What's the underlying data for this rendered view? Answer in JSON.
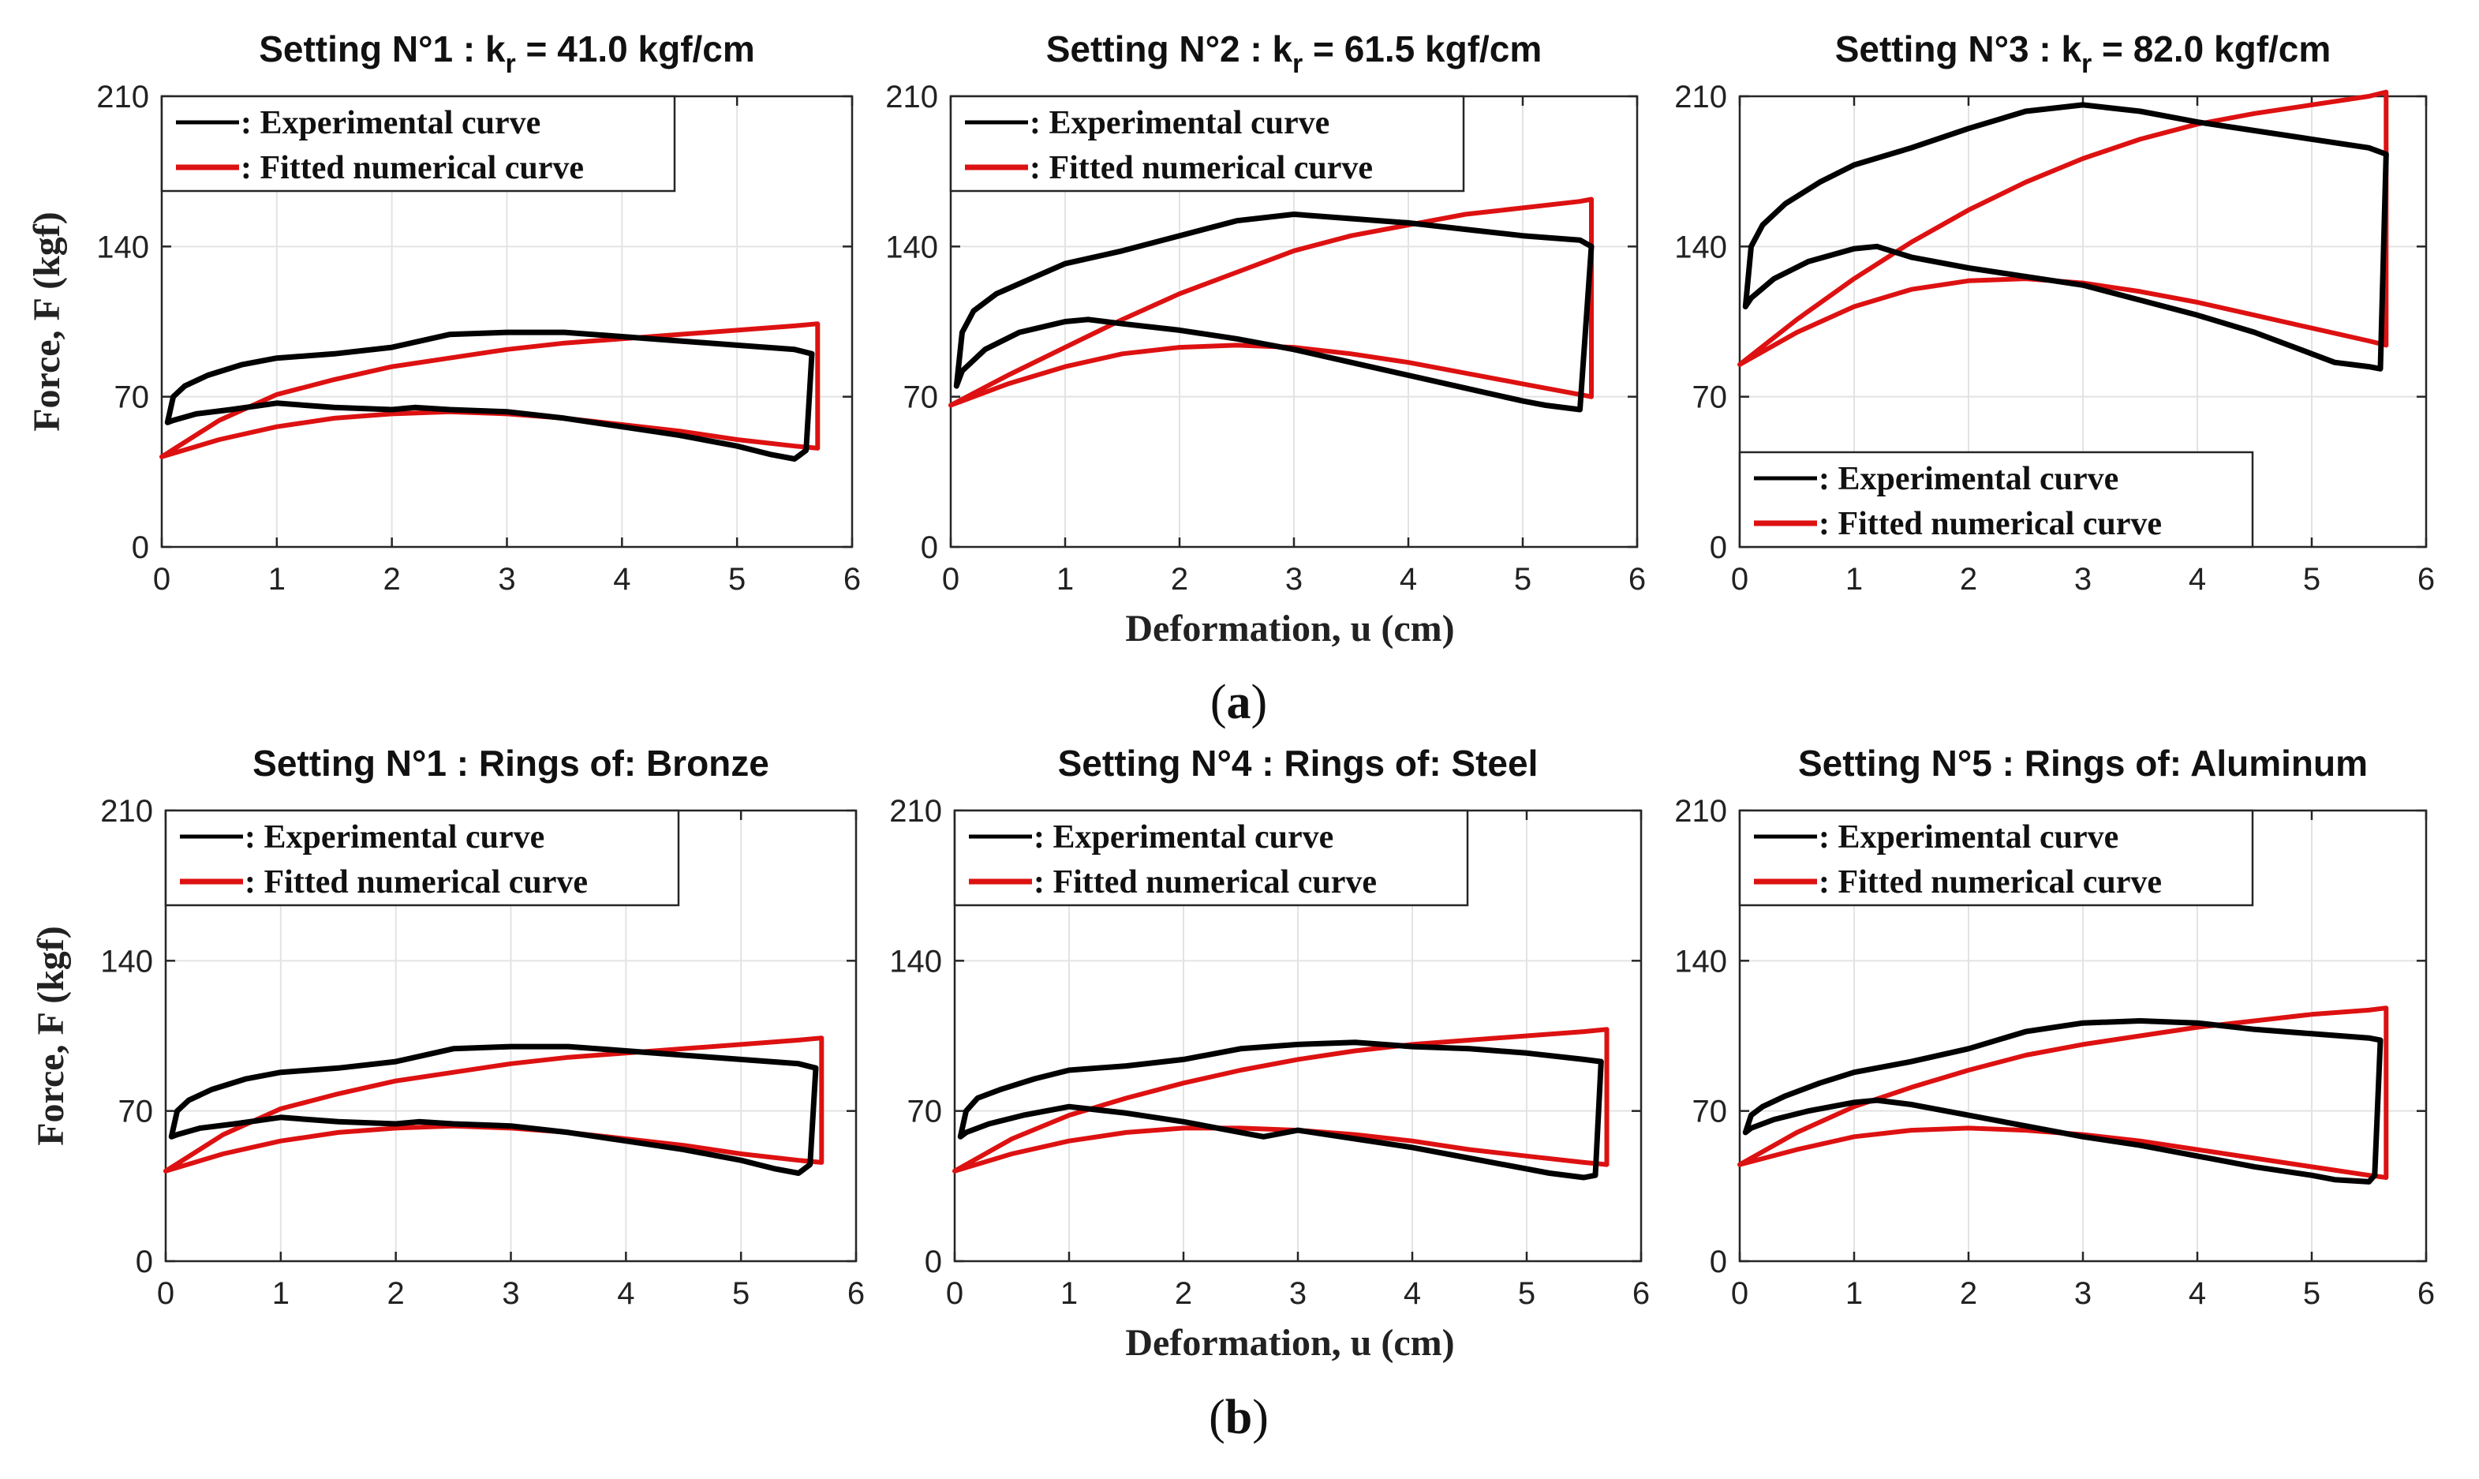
{
  "figure": {
    "row_labels": [
      {
        "open": "(",
        "letter": "a",
        "close": ")"
      },
      {
        "open": "(",
        "letter": "b",
        "close": ")"
      }
    ],
    "xlabel": "Deformation, u (cm)",
    "ylabel": "Force, F (kgf)"
  },
  "colors": {
    "experimental": "#000000",
    "fitted": "#dd1111"
  },
  "chart_data": [
    {
      "type": "line",
      "title_parts": {
        "pre": "Setting N°1 : k",
        "sub": "r",
        "post": " = 41.0 kgf/cm"
      },
      "xlabel": "",
      "ylabel": "Force, F (kgf)",
      "xlim": [
        0,
        6
      ],
      "ylim": [
        0,
        210
      ],
      "xticks": [
        0,
        1,
        2,
        3,
        4,
        5,
        6
      ],
      "yticks": [
        0,
        70,
        140,
        210
      ],
      "grid": true,
      "legend_position": "top-left",
      "series": [
        {
          "name": ": Experimental curve",
          "kind": "experimental",
          "x": [
            0.05,
            0.1,
            0.2,
            0.4,
            0.7,
            1.0,
            1.5,
            2.0,
            2.5,
            3.0,
            3.5,
            4.0,
            4.5,
            5.0,
            5.5,
            5.65,
            5.6,
            5.5,
            5.3,
            5.0,
            4.5,
            4.0,
            3.5,
            3.0,
            2.5,
            2.2,
            2.0,
            1.5,
            1.0,
            0.6,
            0.3,
            0.1,
            0.05
          ],
          "y": [
            58,
            70,
            75,
            80,
            85,
            88,
            90,
            93,
            99,
            100,
            100,
            98,
            96,
            94,
            92,
            90,
            45,
            41,
            43,
            47,
            52,
            56,
            60,
            63,
            64,
            65,
            64,
            65,
            67,
            64,
            62,
            59,
            58
          ]
        },
        {
          "name": ": Fitted numerical curve",
          "kind": "fitted",
          "x": [
            0,
            0.5,
            1.0,
            1.5,
            2.0,
            2.5,
            3.0,
            3.5,
            4.0,
            4.5,
            5.0,
            5.5,
            5.7,
            5.7,
            5.5,
            5.0,
            4.5,
            4.0,
            3.5,
            3.0,
            2.5,
            2.0,
            1.5,
            1.0,
            0.5,
            0
          ],
          "y": [
            42,
            50,
            56,
            60,
            62,
            63,
            62,
            60,
            57,
            54,
            50,
            47,
            46,
            104,
            103,
            101,
            99,
            97,
            95,
            92,
            88,
            84,
            78,
            71,
            59,
            42
          ]
        }
      ]
    },
    {
      "type": "line",
      "title_parts": {
        "pre": "Setting N°2 : k",
        "sub": "r",
        "post": " = 61.5 kgf/cm"
      },
      "xlabel": "",
      "ylabel": "",
      "xlim": [
        0,
        6
      ],
      "ylim": [
        0,
        210
      ],
      "xticks": [
        0,
        1,
        2,
        3,
        4,
        5,
        6
      ],
      "yticks": [
        0,
        70,
        140,
        210
      ],
      "grid": true,
      "legend_position": "top-left",
      "series": [
        {
          "name": ": Experimental curve",
          "kind": "experimental",
          "x": [
            0.05,
            0.1,
            0.2,
            0.4,
            0.7,
            1.0,
            1.5,
            2.0,
            2.5,
            3.0,
            3.5,
            4.0,
            4.5,
            5.0,
            5.5,
            5.6,
            5.5,
            5.2,
            5.0,
            4.5,
            4.0,
            3.5,
            3.0,
            2.5,
            2.0,
            1.5,
            1.2,
            1.0,
            0.6,
            0.3,
            0.1,
            0.05
          ],
          "y": [
            75,
            100,
            110,
            118,
            125,
            132,
            138,
            145,
            152,
            155,
            153,
            151,
            148,
            145,
            143,
            140,
            64,
            66,
            68,
            74,
            80,
            86,
            92,
            97,
            101,
            104,
            106,
            105,
            100,
            92,
            82,
            75
          ]
        },
        {
          "name": ": Fitted numerical curve",
          "kind": "fitted",
          "x": [
            0,
            0.5,
            1.0,
            1.5,
            2.0,
            2.5,
            3.0,
            3.5,
            4.0,
            4.5,
            5.0,
            5.5,
            5.6,
            5.6,
            5.5,
            5.0,
            4.5,
            4.0,
            3.5,
            3.0,
            2.5,
            2.0,
            1.5,
            1.0,
            0.5,
            0
          ],
          "y": [
            66,
            76,
            84,
            90,
            93,
            94,
            93,
            90,
            86,
            81,
            76,
            71,
            70,
            162,
            161,
            158,
            155,
            150,
            145,
            138,
            128,
            118,
            106,
            93,
            80,
            66
          ]
        }
      ]
    },
    {
      "type": "line",
      "title_parts": {
        "pre": "Setting N°3 : k",
        "sub": "r",
        "post": " = 82.0 kgf/cm"
      },
      "xlabel": "",
      "ylabel": "",
      "xlim": [
        0,
        6
      ],
      "ylim": [
        0,
        210
      ],
      "xticks": [
        0,
        1,
        2,
        3,
        4,
        5,
        6
      ],
      "yticks": [
        0,
        70,
        140,
        210
      ],
      "grid": true,
      "legend_position": "bottom-left",
      "series": [
        {
          "name": ": Experimental curve",
          "kind": "experimental",
          "x": [
            0.05,
            0.1,
            0.2,
            0.4,
            0.7,
            1.0,
            1.5,
            2.0,
            2.5,
            3.0,
            3.5,
            4.0,
            4.5,
            5.0,
            5.5,
            5.65,
            5.6,
            5.5,
            5.2,
            5.0,
            4.5,
            4.0,
            3.5,
            3.0,
            2.5,
            2.0,
            1.5,
            1.2,
            1.0,
            0.6,
            0.3,
            0.1,
            0.05
          ],
          "y": [
            112,
            140,
            150,
            160,
            170,
            178,
            186,
            195,
            203,
            206,
            203,
            198,
            194,
            190,
            186,
            183,
            83,
            84,
            86,
            90,
            100,
            108,
            115,
            122,
            126,
            130,
            135,
            140,
            139,
            133,
            125,
            116,
            112
          ]
        },
        {
          "name": ": Fitted numerical curve",
          "kind": "fitted",
          "x": [
            0,
            0.5,
            1.0,
            1.5,
            2.0,
            2.5,
            3.0,
            3.5,
            4.0,
            4.5,
            5.0,
            5.5,
            5.65,
            5.65,
            5.5,
            5.0,
            4.5,
            4.0,
            3.5,
            3.0,
            2.5,
            2.0,
            1.5,
            1.0,
            0.5,
            0
          ],
          "y": [
            85,
            100,
            112,
            120,
            124,
            125,
            123,
            119,
            114,
            108,
            102,
            96,
            94,
            212,
            210,
            206,
            202,
            197,
            190,
            181,
            170,
            157,
            142,
            125,
            106,
            85
          ]
        }
      ]
    },
    {
      "type": "line",
      "title_parts": {
        "pre": "Setting N°1 : Rings of: Bronze",
        "sub": "",
        "post": ""
      },
      "xlabel": "",
      "ylabel": "Force, F (kgf)",
      "xlim": [
        0,
        6
      ],
      "ylim": [
        0,
        210
      ],
      "xticks": [
        0,
        1,
        2,
        3,
        4,
        5,
        6
      ],
      "yticks": [
        0,
        70,
        140,
        210
      ],
      "grid": true,
      "legend_position": "top-left",
      "series": [
        {
          "name": ": Experimental curve",
          "kind": "experimental",
          "x": [
            0.05,
            0.1,
            0.2,
            0.4,
            0.7,
            1.0,
            1.5,
            2.0,
            2.5,
            3.0,
            3.5,
            4.0,
            4.5,
            5.0,
            5.5,
            5.65,
            5.6,
            5.5,
            5.3,
            5.0,
            4.5,
            4.0,
            3.5,
            3.0,
            2.5,
            2.2,
            2.0,
            1.5,
            1.0,
            0.6,
            0.3,
            0.1,
            0.05
          ],
          "y": [
            58,
            70,
            75,
            80,
            85,
            88,
            90,
            93,
            99,
            100,
            100,
            98,
            96,
            94,
            92,
            90,
            45,
            41,
            43,
            47,
            52,
            56,
            60,
            63,
            64,
            65,
            64,
            65,
            67,
            64,
            62,
            59,
            58
          ]
        },
        {
          "name": ": Fitted numerical curve",
          "kind": "fitted",
          "x": [
            0,
            0.5,
            1.0,
            1.5,
            2.0,
            2.5,
            3.0,
            3.5,
            4.0,
            4.5,
            5.0,
            5.5,
            5.7,
            5.7,
            5.5,
            5.0,
            4.5,
            4.0,
            3.5,
            3.0,
            2.5,
            2.0,
            1.5,
            1.0,
            0.5,
            0
          ],
          "y": [
            42,
            50,
            56,
            60,
            62,
            63,
            62,
            60,
            57,
            54,
            50,
            47,
            46,
            104,
            103,
            101,
            99,
            97,
            95,
            92,
            88,
            84,
            78,
            71,
            59,
            42
          ]
        }
      ]
    },
    {
      "type": "line",
      "title_parts": {
        "pre": "Setting N°4 : Rings of: Steel",
        "sub": "",
        "post": ""
      },
      "xlabel": "",
      "ylabel": "",
      "xlim": [
        0,
        6
      ],
      "ylim": [
        0,
        210
      ],
      "xticks": [
        0,
        1,
        2,
        3,
        4,
        5,
        6
      ],
      "yticks": [
        0,
        70,
        140,
        210
      ],
      "grid": true,
      "legend_position": "top-left",
      "series": [
        {
          "name": ": Experimental curve",
          "kind": "experimental",
          "x": [
            0.05,
            0.1,
            0.2,
            0.4,
            0.7,
            1.0,
            1.5,
            2.0,
            2.5,
            3.0,
            3.5,
            4.0,
            4.5,
            5.0,
            5.5,
            5.65,
            5.6,
            5.5,
            5.2,
            5.0,
            4.5,
            4.0,
            3.5,
            3.0,
            2.7,
            2.5,
            2.0,
            1.5,
            1.0,
            0.6,
            0.3,
            0.1,
            0.05
          ],
          "y": [
            58,
            70,
            76,
            80,
            85,
            89,
            91,
            94,
            99,
            101,
            102,
            100,
            99,
            97,
            94,
            93,
            40,
            39,
            41,
            43,
            48,
            53,
            57,
            61,
            58,
            60,
            65,
            69,
            72,
            68,
            64,
            60,
            58
          ]
        },
        {
          "name": ": Fitted numerical curve",
          "kind": "fitted",
          "x": [
            0,
            0.5,
            1.0,
            1.5,
            2.0,
            2.5,
            3.0,
            3.5,
            4.0,
            4.5,
            5.0,
            5.5,
            5.7,
            5.7,
            5.5,
            5.0,
            4.5,
            4.0,
            3.5,
            3.0,
            2.5,
            2.0,
            1.5,
            1.0,
            0.5,
            0
          ],
          "y": [
            42,
            50,
            56,
            60,
            62,
            62,
            61,
            59,
            56,
            52,
            49,
            46,
            45,
            108,
            107,
            105,
            103,
            101,
            98,
            94,
            89,
            83,
            76,
            68,
            57,
            42
          ]
        }
      ]
    },
    {
      "type": "line",
      "title_parts": {
        "pre": "Setting N°5 : Rings of: Aluminum",
        "sub": "",
        "post": ""
      },
      "xlabel": "",
      "ylabel": "",
      "xlim": [
        0,
        6
      ],
      "ylim": [
        0,
        210
      ],
      "xticks": [
        0,
        1,
        2,
        3,
        4,
        5,
        6
      ],
      "yticks": [
        0,
        70,
        140,
        210
      ],
      "grid": true,
      "legend_position": "top-left",
      "series": [
        {
          "name": ": Experimental curve",
          "kind": "experimental",
          "x": [
            0.05,
            0.1,
            0.2,
            0.4,
            0.7,
            1.0,
            1.5,
            2.0,
            2.5,
            3.0,
            3.5,
            4.0,
            4.5,
            5.0,
            5.5,
            5.6,
            5.55,
            5.5,
            5.2,
            5.0,
            4.5,
            4.0,
            3.5,
            3.0,
            2.5,
            2.0,
            1.5,
            1.2,
            1.0,
            0.6,
            0.3,
            0.1,
            0.05
          ],
          "y": [
            60,
            68,
            72,
            77,
            83,
            88,
            93,
            99,
            107,
            111,
            112,
            111,
            108,
            106,
            104,
            103,
            40,
            37,
            38,
            40,
            44,
            49,
            54,
            58,
            63,
            68,
            73,
            75,
            74,
            70,
            66,
            62,
            60
          ]
        },
        {
          "name": ": Fitted numerical curve",
          "kind": "fitted",
          "x": [
            0,
            0.5,
            1.0,
            1.5,
            2.0,
            2.5,
            3.0,
            3.5,
            4.0,
            4.5,
            5.0,
            5.5,
            5.65,
            5.65,
            5.5,
            5.0,
            4.5,
            4.0,
            3.5,
            3.0,
            2.5,
            2.0,
            1.5,
            1.0,
            0.5,
            0
          ],
          "y": [
            45,
            52,
            58,
            61,
            62,
            61,
            59,
            56,
            52,
            48,
            44,
            40,
            39,
            118,
            117,
            115,
            112,
            109,
            105,
            101,
            96,
            89,
            81,
            72,
            60,
            45
          ]
        }
      ]
    }
  ]
}
